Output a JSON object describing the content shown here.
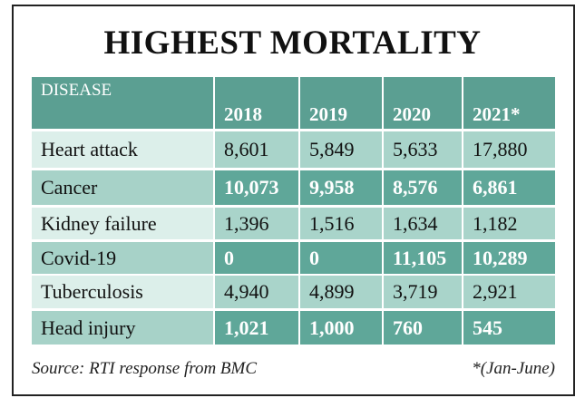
{
  "header": {
    "title": "HIGHEST MORTALITY"
  },
  "table": {
    "columns": [
      "DISEASE",
      "2018",
      "2019",
      "2020",
      "2021*"
    ],
    "rows": [
      [
        "Heart attack",
        "8,601",
        "5,849",
        "5,633",
        "17,880"
      ],
      [
        "Cancer",
        "10,073",
        "9,958",
        "8,576",
        "6,861"
      ],
      [
        "Kidney failure",
        "1,396",
        "1,516",
        "1,634",
        "1,182"
      ],
      [
        "Covid-19",
        "0",
        "0",
        "11,105",
        "10,289"
      ],
      [
        "Tuberculosis",
        "4,940",
        "4,899",
        "3,719",
        "2,921"
      ],
      [
        "Head injury",
        "1,021",
        "1,000",
        "760",
        "545"
      ]
    ]
  },
  "footer": {
    "source": "Source: RTI response from BMC",
    "note": "*(Jan-June)"
  }
}
